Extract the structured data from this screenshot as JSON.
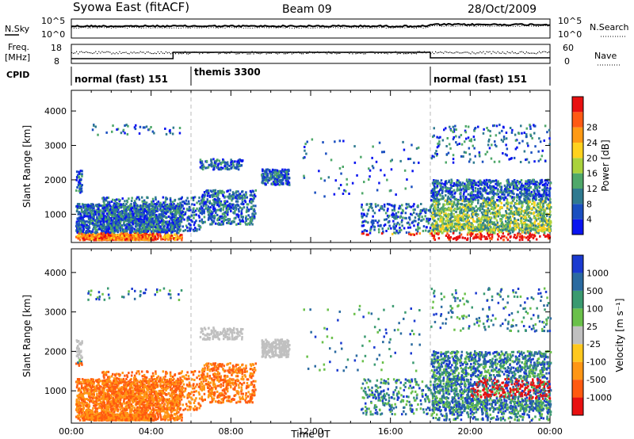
{
  "header": {
    "station": "Syowa East (fitACF)",
    "beam": "Beam 09",
    "date": "28/Oct/2009"
  },
  "noise_panel": {
    "left_label": "N.Sky",
    "right_label": "N.Search",
    "ticks": [
      "10^5",
      "10^0"
    ]
  },
  "freq_panel": {
    "left_label_1": "Freq.",
    "left_label_2": "[MHz]",
    "left_ticks": [
      "18",
      "8"
    ],
    "right_label": "Nave",
    "right_ticks": [
      "60",
      "0"
    ]
  },
  "cpid": {
    "label": "CPID",
    "segments": [
      {
        "name": "normal (fast) 151",
        "start_hour": 0,
        "end_hour": 6
      },
      {
        "name": "themis 3300",
        "start_hour": 6,
        "end_hour": 18
      },
      {
        "name": "normal (fast) 151",
        "start_hour": 18,
        "end_hour": 24
      }
    ]
  },
  "chart_data": [
    {
      "type": "heatmap",
      "title": "",
      "xlabel": "Time UT",
      "ylabel": "Slant Range [km]",
      "xlim": [
        0,
        24
      ],
      "ylim": [
        180,
        4600
      ],
      "x_ticks": [
        "00:00",
        "04:00",
        "08:00",
        "12:00",
        "16:00",
        "20:00",
        "00:00"
      ],
      "y_ticks": [
        "1000",
        "2000",
        "3000",
        "4000"
      ],
      "y_tick_values": [
        1000,
        2000,
        3000,
        4000
      ],
      "colorbar": {
        "label": "Power [dB]",
        "ticks": [
          "4",
          "8",
          "12",
          "16",
          "20",
          "24",
          "28"
        ],
        "colors": [
          "#0a14f0",
          "#1a4fc0",
          "#2f7a90",
          "#4fa86a",
          "#aad23c",
          "#ffd21e",
          "#ff9a14",
          "#ff5a14",
          "#e81010"
        ]
      }
    },
    {
      "type": "heatmap",
      "title": "",
      "xlabel": "Time UT",
      "ylabel": "Slant Range [km]",
      "xlim": [
        0,
        24
      ],
      "ylim": [
        180,
        4600
      ],
      "x_ticks": [
        "00:00",
        "04:00",
        "08:00",
        "12:00",
        "16:00",
        "20:00",
        "00:00"
      ],
      "y_ticks": [
        "1000",
        "2000",
        "3000",
        "4000"
      ],
      "y_tick_values": [
        1000,
        2000,
        3000,
        4000
      ],
      "colorbar": {
        "label": "Velocity [m s⁻¹]",
        "ticks": [
          "1000",
          "500",
          "100",
          "25",
          "-25",
          "-100",
          "-500",
          "-1000"
        ],
        "colors": [
          "#1a3ad0",
          "#2a6aa0",
          "#3a9a70",
          "#6ac04a",
          "#c0c0c0",
          "#ffc81e",
          "#ff9614",
          "#ff5a10",
          "#e81010"
        ]
      }
    }
  ]
}
